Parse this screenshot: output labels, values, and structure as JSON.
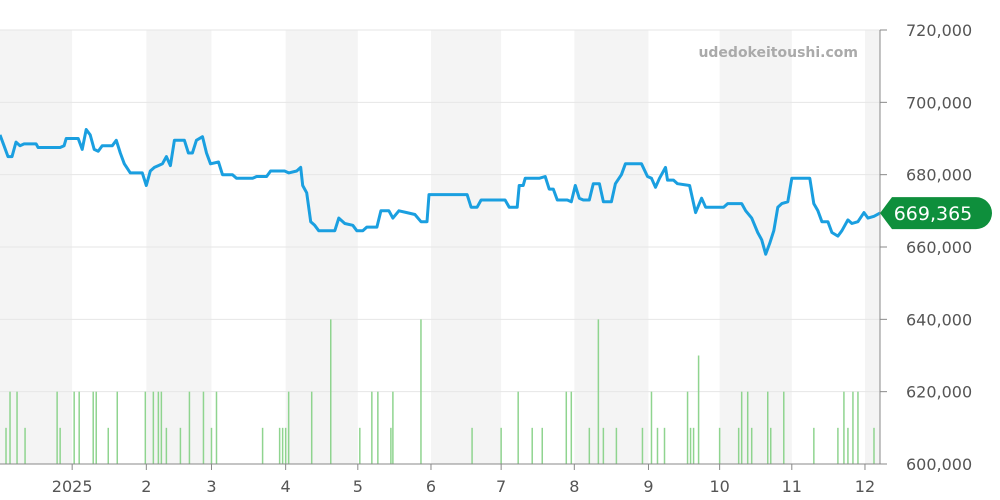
{
  "chart_data": {
    "type": "line",
    "watermark": "udedokeitoushi.com",
    "current_value_label": "669,365",
    "x_tick_labels": [
      "2025",
      "2",
      "3",
      "4",
      "5",
      "6",
      "7",
      "8",
      "9",
      "10",
      "11",
      "12"
    ],
    "x_range": [
      0,
      878
    ],
    "month_tick_positions": [
      0,
      72,
      146,
      211,
      285,
      357,
      430,
      500,
      573,
      647,
      718,
      790,
      863
    ],
    "y_axis": {
      "min": 600000,
      "max": 720000,
      "ticks": [
        600000,
        620000,
        640000,
        660000,
        680000,
        700000,
        720000
      ],
      "tick_labels": [
        "600,000",
        "620,000",
        "640,000",
        "660,000",
        "680,000",
        "700,000",
        "720,000"
      ]
    },
    "grid": true,
    "colors": {
      "line": "#1a9fe0",
      "volume": "#8fd48f",
      "badge": "#0e8f3c",
      "band": "#f4f4f4",
      "grid": "#e6e6e6"
    },
    "series": [
      {
        "values": [
          [
            0,
            691000
          ],
          [
            4,
            688000
          ],
          [
            8,
            685000
          ],
          [
            12,
            685000
          ],
          [
            16,
            689000
          ],
          [
            20,
            688000
          ],
          [
            24,
            688500
          ],
          [
            36,
            688500
          ],
          [
            38,
            687500
          ],
          [
            60,
            687500
          ],
          [
            64,
            688000
          ],
          [
            66,
            690000
          ],
          [
            78,
            690000
          ],
          [
            82,
            687000
          ],
          [
            86,
            692500
          ],
          [
            90,
            691000
          ],
          [
            94,
            687000
          ],
          [
            98,
            686500
          ],
          [
            102,
            688000
          ],
          [
            112,
            688000
          ],
          [
            116,
            689500
          ],
          [
            120,
            686000
          ],
          [
            124,
            683000
          ],
          [
            130,
            680500
          ],
          [
            142,
            680500
          ],
          [
            146,
            677000
          ],
          [
            150,
            681000
          ],
          [
            154,
            682000
          ],
          [
            158,
            682500
          ],
          [
            162,
            683000
          ],
          [
            166,
            685000
          ],
          [
            170,
            682500
          ],
          [
            174,
            689500
          ],
          [
            184,
            689500
          ],
          [
            188,
            686000
          ],
          [
            192,
            686000
          ],
          [
            196,
            689500
          ],
          [
            202,
            690500
          ],
          [
            206,
            686000
          ],
          [
            210,
            683000
          ],
          [
            218,
            683500
          ],
          [
            222,
            680000
          ],
          [
            232,
            680000
          ],
          [
            236,
            679000
          ],
          [
            252,
            679000
          ],
          [
            256,
            679500
          ],
          [
            266,
            679500
          ],
          [
            270,
            681000
          ],
          [
            284,
            681000
          ],
          [
            288,
            680500
          ],
          [
            296,
            681000
          ],
          [
            300,
            682000
          ],
          [
            302,
            677000
          ],
          [
            306,
            675000
          ],
          [
            310,
            667000
          ],
          [
            314,
            666000
          ],
          [
            318,
            664500
          ],
          [
            334,
            664500
          ],
          [
            338,
            668000
          ],
          [
            344,
            666500
          ],
          [
            352,
            666000
          ],
          [
            356,
            664500
          ],
          [
            362,
            664500
          ],
          [
            366,
            665500
          ],
          [
            376,
            665500
          ],
          [
            380,
            670000
          ],
          [
            388,
            670000
          ],
          [
            392,
            668000
          ],
          [
            398,
            670000
          ],
          [
            406,
            669500
          ],
          [
            414,
            669000
          ],
          [
            420,
            667000
          ],
          [
            426,
            667000
          ],
          [
            428,
            674500
          ],
          [
            466,
            674500
          ],
          [
            470,
            671000
          ],
          [
            476,
            671000
          ],
          [
            480,
            673000
          ],
          [
            504,
            673000
          ],
          [
            508,
            671000
          ],
          [
            516,
            671000
          ],
          [
            518,
            677000
          ],
          [
            522,
            677000
          ],
          [
            524,
            679000
          ],
          [
            538,
            679000
          ],
          [
            544,
            679500
          ],
          [
            548,
            676000
          ],
          [
            552,
            676000
          ],
          [
            556,
            673000
          ],
          [
            566,
            673000
          ],
          [
            570,
            672500
          ],
          [
            574,
            677000
          ],
          [
            578,
            673500
          ],
          [
            582,
            673000
          ],
          [
            588,
            673000
          ],
          [
            592,
            677500
          ],
          [
            598,
            677500
          ],
          [
            602,
            672500
          ],
          [
            610,
            672500
          ],
          [
            614,
            677500
          ],
          [
            620,
            680000
          ],
          [
            624,
            683000
          ],
          [
            640,
            683000
          ],
          [
            646,
            679500
          ],
          [
            650,
            679000
          ],
          [
            654,
            676500
          ],
          [
            658,
            679000
          ],
          [
            664,
            682000
          ],
          [
            666,
            678500
          ],
          [
            672,
            678500
          ],
          [
            676,
            677500
          ],
          [
            688,
            677000
          ],
          [
            694,
            669500
          ],
          [
            700,
            673500
          ],
          [
            704,
            671000
          ],
          [
            722,
            671000
          ],
          [
            726,
            672000
          ],
          [
            740,
            672000
          ],
          [
            744,
            670000
          ],
          [
            750,
            668000
          ],
          [
            756,
            664000
          ],
          [
            760,
            662000
          ],
          [
            764,
            658000
          ],
          [
            768,
            661000
          ],
          [
            772,
            664500
          ],
          [
            776,
            671000
          ],
          [
            780,
            672000
          ],
          [
            786,
            672500
          ],
          [
            790,
            679000
          ],
          [
            808,
            679000
          ],
          [
            812,
            672000
          ],
          [
            816,
            670000
          ],
          [
            820,
            667000
          ],
          [
            826,
            667000
          ],
          [
            830,
            664000
          ],
          [
            836,
            663000
          ],
          [
            840,
            664500
          ],
          [
            846,
            667500
          ],
          [
            850,
            666500
          ],
          [
            856,
            667000
          ],
          [
            862,
            669500
          ],
          [
            866,
            668000
          ],
          [
            872,
            668500
          ],
          [
            878,
            669365
          ]
        ]
      }
    ],
    "volume_bars": [
      [
        6,
        610000
      ],
      [
        10,
        620000
      ],
      [
        17,
        620000
      ],
      [
        25,
        610000
      ],
      [
        57,
        620000
      ],
      [
        60,
        610000
      ],
      [
        74,
        620000
      ],
      [
        79,
        620000
      ],
      [
        93,
        620000
      ],
      [
        96,
        620000
      ],
      [
        108,
        610000
      ],
      [
        117,
        620000
      ],
      [
        145,
        620000
      ],
      [
        153,
        620000
      ],
      [
        158,
        620000
      ],
      [
        161,
        620000
      ],
      [
        166,
        610000
      ],
      [
        180,
        610000
      ],
      [
        189,
        620000
      ],
      [
        203,
        620000
      ],
      [
        211,
        610000
      ],
      [
        216,
        620000
      ],
      [
        262,
        610000
      ],
      [
        279,
        610000
      ],
      [
        282,
        610000
      ],
      [
        285,
        610000
      ],
      [
        288,
        620000
      ],
      [
        311,
        620000
      ],
      [
        330,
        640000
      ],
      [
        359,
        610000
      ],
      [
        371,
        620000
      ],
      [
        377,
        620000
      ],
      [
        390,
        610000
      ],
      [
        392,
        620000
      ],
      [
        420,
        640000
      ],
      [
        471,
        610000
      ],
      [
        500,
        610000
      ],
      [
        517,
        620000
      ],
      [
        531,
        610000
      ],
      [
        541,
        610000
      ],
      [
        565,
        620000
      ],
      [
        570,
        620000
      ],
      [
        588,
        610000
      ],
      [
        597,
        640000
      ],
      [
        602,
        610000
      ],
      [
        615,
        610000
      ],
      [
        641,
        610000
      ],
      [
        650,
        620000
      ],
      [
        656,
        610000
      ],
      [
        663,
        610000
      ],
      [
        686,
        620000
      ],
      [
        689,
        610000
      ],
      [
        692,
        610000
      ],
      [
        697,
        630000
      ],
      [
        718,
        610000
      ],
      [
        737,
        610000
      ],
      [
        740,
        620000
      ],
      [
        746,
        620000
      ],
      [
        750,
        610000
      ],
      [
        766,
        620000
      ],
      [
        769,
        610000
      ],
      [
        782,
        620000
      ],
      [
        812,
        610000
      ],
      [
        836,
        610000
      ],
      [
        842,
        620000
      ],
      [
        846,
        610000
      ],
      [
        851,
        620000
      ],
      [
        856,
        620000
      ],
      [
        872,
        610000
      ]
    ]
  }
}
